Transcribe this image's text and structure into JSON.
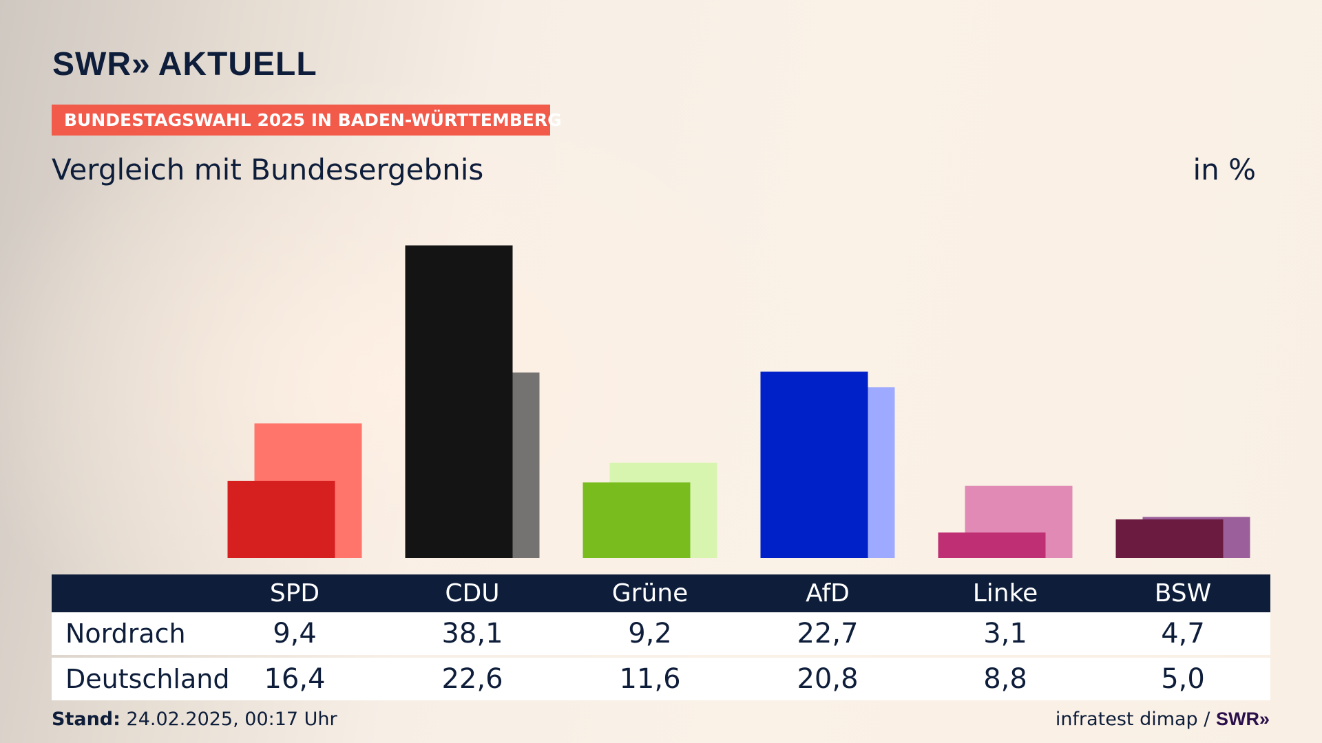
{
  "header": {
    "logo_text": "SWR",
    "logo_chevrons": "»",
    "logo_suffix": "AKTUELL",
    "kicker": "BUNDESTAGSWAHL 2025 IN BADEN-WÜRTTEMBERG",
    "subtitle": "Vergleich mit Bundesergebnis",
    "unit": "in %"
  },
  "chart_data": {
    "type": "bar",
    "categories": [
      "SPD",
      "CDU",
      "Grüne",
      "AfD",
      "Linke",
      "BSW"
    ],
    "series": [
      {
        "name": "Nordrach",
        "values": [
          9.4,
          38.1,
          9.2,
          22.7,
          3.1,
          4.7
        ]
      },
      {
        "name": "Deutschland",
        "values": [
          16.4,
          22.6,
          11.6,
          20.8,
          8.8,
          5.0
        ]
      }
    ],
    "colors": {
      "Nordrach": [
        "#d62020",
        "#141414",
        "#78bc1e",
        "#0020c8",
        "#bf2f73",
        "#6b1a40"
      ],
      "Deutschland": [
        "#ff756b",
        "#747371",
        "#d8f5b0",
        "#9eaaff",
        "#e08ab5",
        "#9b5f9b"
      ]
    },
    "ylim": [
      0,
      40
    ],
    "grid": false,
    "legend": "none"
  },
  "table": {
    "rows": [
      {
        "label": "Nordrach",
        "values": [
          "9,4",
          "38,1",
          "9,2",
          "22,7",
          "3,1",
          "4,7"
        ]
      },
      {
        "label": "Deutschland",
        "values": [
          "16,4",
          "22,6",
          "11,6",
          "20,8",
          "8,8",
          "5,0"
        ]
      }
    ]
  },
  "footer": {
    "stand_label": "Stand:",
    "stand_value": "24.02.2025, 00:17 Uhr",
    "source": "infratest dimap /",
    "source_logo": "SWR»"
  }
}
